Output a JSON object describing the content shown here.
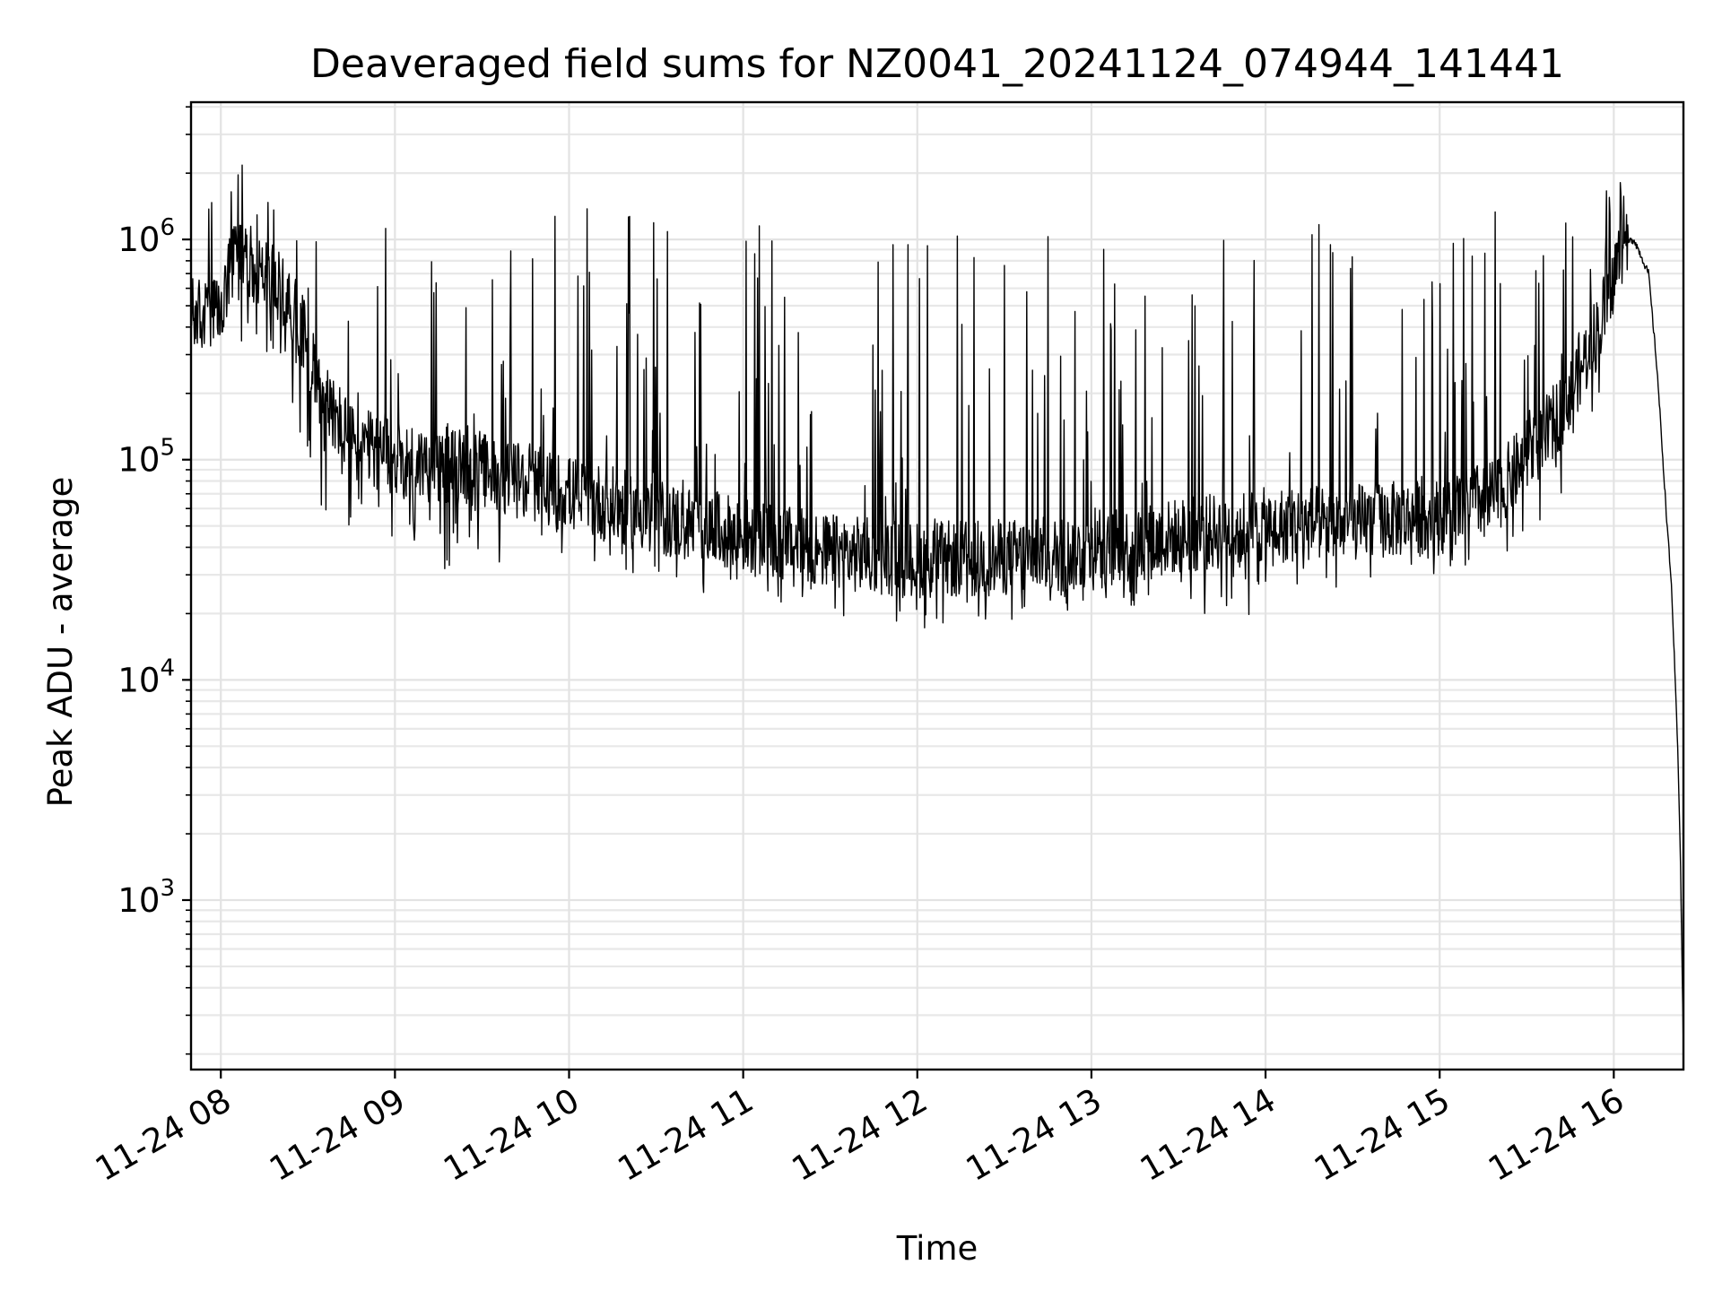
{
  "chart_data": {
    "type": "line",
    "title": "Deaveraged field sums for NZ0041_20241124_074944_141441",
    "xlabel": "Time",
    "ylabel": "Peak ADU - average",
    "yscale": "log",
    "grid": "on (major and minor)",
    "colors": {
      "line": "#000000",
      "grid": "#e3e3e3",
      "frame": "#000000",
      "background": "#ffffff"
    },
    "xlim": [
      "2024-11-24 07:49:44",
      "2024-11-24 16:24:00"
    ],
    "ylim": [
      170,
      4200000
    ],
    "xticks": [
      "2024-11-24 08:00",
      "2024-11-24 09:00",
      "2024-11-24 10:00",
      "2024-11-24 11:00",
      "2024-11-24 12:00",
      "2024-11-24 13:00",
      "2024-11-24 14:00",
      "2024-11-24 15:00",
      "2024-11-24 16:00"
    ],
    "xtick_labels": [
      "11-24 08",
      "11-24 09",
      "11-24 10",
      "11-24 11",
      "11-24 12",
      "11-24 13",
      "11-24 14",
      "11-24 15",
      "11-24 16"
    ],
    "ytick_values": [
      1000,
      10000,
      100000,
      1000000
    ],
    "ytick_labels": [
      {
        "base": "10",
        "exp": "3"
      },
      {
        "base": "10",
        "exp": "4"
      },
      {
        "base": "10",
        "exp": "5"
      },
      {
        "base": "10",
        "exp": "6"
      }
    ],
    "series": [
      {
        "x": [
          "2024-11-24 07:49:44",
          "2024-11-24 07:55",
          "2024-11-24 08:00",
          "2024-11-24 08:05",
          "2024-11-24 08:15",
          "2024-11-24 08:25",
          "2024-11-24 08:35",
          "2024-11-24 08:45",
          "2024-11-24 09:00",
          "2024-11-24 09:30",
          "2024-11-24 10:00",
          "2024-11-24 10:30",
          "2024-11-24 11:00",
          "2024-11-24 11:30",
          "2024-11-24 12:00",
          "2024-11-24 12:30",
          "2024-11-24 13:00",
          "2024-11-24 13:30",
          "2024-11-24 14:00",
          "2024-11-24 14:30",
          "2024-11-24 15:00",
          "2024-11-24 15:20",
          "2024-11-24 15:40",
          "2024-11-24 15:55",
          "2024-11-24 16:03",
          "2024-11-24 16:07",
          "2024-11-24 16:12",
          "2024-11-24 16:15",
          "2024-11-24 16:18",
          "2024-11-24 16:20",
          "2024-11-24 16:22",
          "2024-11-24 16:23",
          "2024-11-24 16:24"
        ],
        "baseline": [
          450000,
          450000,
          450000,
          900000,
          700000,
          500000,
          200000,
          120000,
          100000,
          90000,
          70000,
          55000,
          45000,
          38000,
          35000,
          36000,
          38000,
          45000,
          50000,
          52000,
          55000,
          70000,
          150000,
          400000,
          950000,
          1000000,
          700000,
          250000,
          60000,
          25000,
          5000,
          1500,
          200
        ],
        "spike_peaks": [
          1400000,
          1500000,
          1500000,
          2800000,
          1500000,
          1500000,
          1500000,
          1400000,
          1400000,
          1300000,
          1400000,
          1300000,
          1200000,
          1000000,
          1200000,
          1100000,
          1200000,
          1000000,
          1300000,
          1300000,
          1400000,
          1400000,
          1200000,
          1600000,
          2000000,
          1000000,
          700000,
          250000,
          60000,
          25000,
          5000,
          1500,
          200
        ],
        "dip_floor": [
          350000,
          350000,
          350000,
          400000,
          200000,
          150000,
          60000,
          35000,
          32000,
          30000,
          30000,
          28000,
          22000,
          20000,
          17000,
          18000,
          19000,
          20000,
          18000,
          25000,
          30000,
          35000,
          60000,
          200000,
          800000,
          900000,
          600000,
          200000,
          50000,
          20000,
          4000,
          1200,
          180
        ]
      }
    ]
  }
}
